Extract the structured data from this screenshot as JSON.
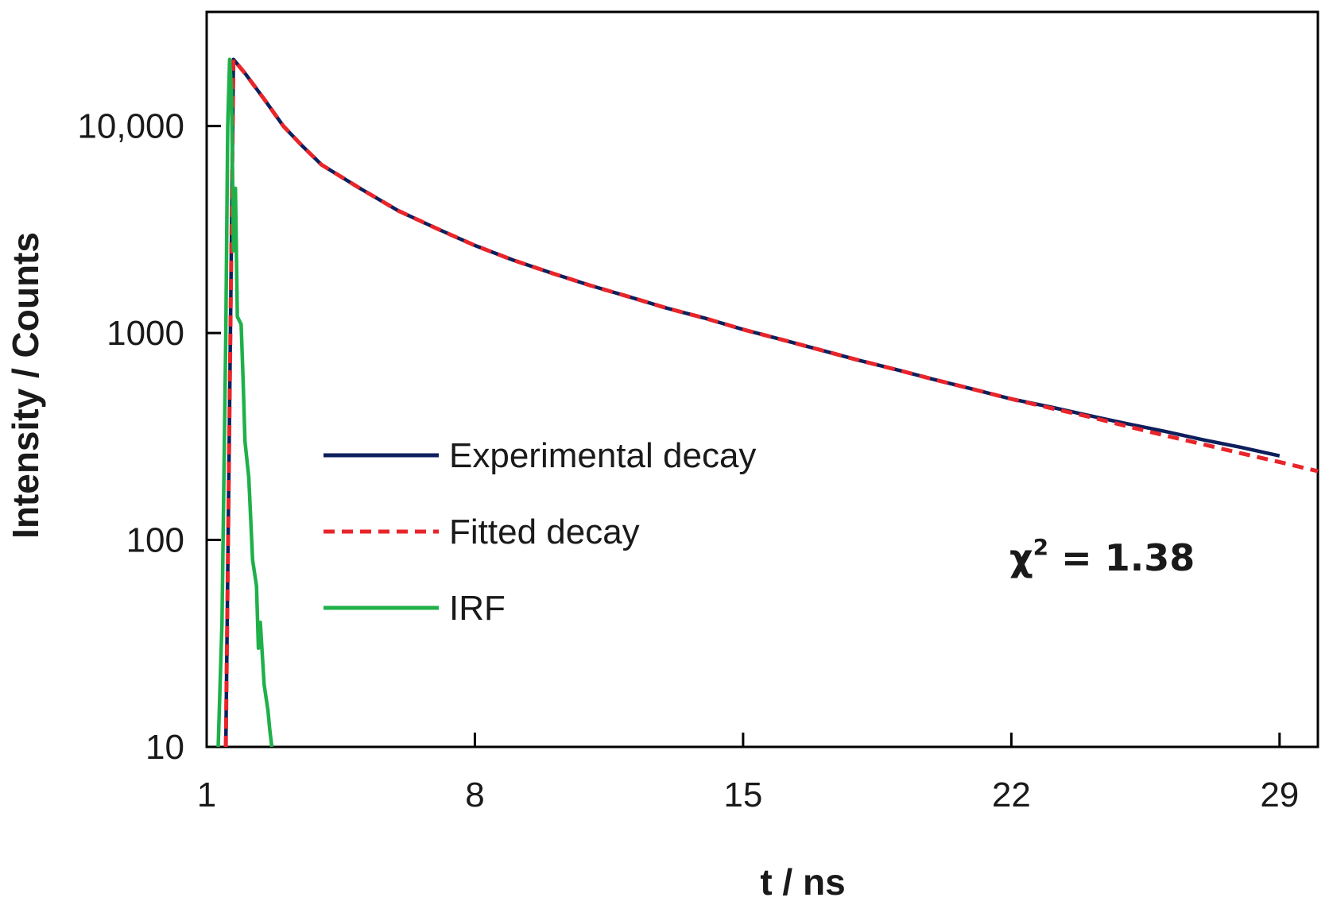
{
  "chart_data": {
    "type": "line",
    "title": "",
    "xlabel": "t / ns",
    "ylabel": "Intensity / Counts",
    "xlim": [
      1,
      30
    ],
    "ylim": [
      10,
      25000
    ],
    "y_scale": "log",
    "x_ticks": [
      1,
      8,
      15,
      22,
      29
    ],
    "x_tick_labels": [
      "1",
      "8",
      "15",
      "22",
      "29"
    ],
    "y_ticks": [
      10,
      100,
      1000,
      10000
    ],
    "y_tick_labels": [
      "10",
      "100",
      "1000",
      "10,000"
    ],
    "grid": false,
    "legend_position": "center-left",
    "series": [
      {
        "name": "Experimental decay",
        "color": "#0d1f5c",
        "style": "solid",
        "x": [
          1.5,
          1.7,
          2.0,
          2.5,
          3.0,
          3.5,
          4.0,
          5.0,
          6.0,
          7.0,
          8.0,
          9.0,
          10.0,
          11.0,
          12.0,
          13.0,
          14.0,
          15.0,
          16.0,
          17.0,
          18.0,
          19.0,
          20.0,
          21.0,
          22.0,
          23.0,
          24.0,
          25.0,
          26.0,
          27.0,
          28.0,
          29.0
        ],
        "y": [
          10,
          21000,
          18000,
          13500,
          10000,
          8000,
          6500,
          5000,
          3900,
          3200,
          2650,
          2250,
          1950,
          1700,
          1500,
          1320,
          1180,
          1040,
          930,
          830,
          740,
          665,
          595,
          535,
          480,
          440,
          400,
          365,
          335,
          305,
          280,
          255
        ]
      },
      {
        "name": "Fitted decay",
        "color": "#e8252a",
        "style": "dashed",
        "x": [
          1.5,
          1.7,
          2.0,
          2.5,
          3.0,
          3.5,
          4.0,
          5.0,
          6.0,
          7.0,
          8.0,
          9.0,
          10.0,
          11.0,
          12.0,
          13.0,
          14.0,
          15.0,
          16.0,
          17.0,
          18.0,
          19.0,
          20.0,
          21.0,
          22.0,
          23.0,
          24.0,
          25.0,
          26.0,
          27.0,
          28.0,
          29.0,
          30.0
        ],
        "y": [
          10,
          21000,
          18000,
          13500,
          10000,
          8000,
          6500,
          5000,
          3900,
          3200,
          2650,
          2250,
          1950,
          1700,
          1500,
          1320,
          1180,
          1040,
          930,
          830,
          740,
          665,
          595,
          535,
          480,
          435,
          395,
          355,
          320,
          290,
          262,
          238,
          215
        ]
      },
      {
        "name": "IRF",
        "color": "#1fb04a",
        "style": "solid",
        "x": [
          1.3,
          1.4,
          1.5,
          1.55,
          1.6,
          1.65,
          1.7,
          1.75,
          1.8,
          1.9,
          1.95,
          2.0,
          2.1,
          2.2,
          2.3,
          2.35,
          2.4,
          2.5,
          2.6,
          2.65,
          2.7
        ],
        "y": [
          10,
          40,
          1000,
          10000,
          21000,
          15000,
          2500,
          5000,
          1200,
          1100,
          600,
          300,
          200,
          80,
          60,
          30,
          40,
          20,
          15,
          12,
          10
        ]
      }
    ],
    "annotations": [
      {
        "text_base": "χ",
        "text_sup": "2",
        "text_rest": " = 1.38",
        "x": 23.5,
        "y": 95
      }
    ]
  }
}
